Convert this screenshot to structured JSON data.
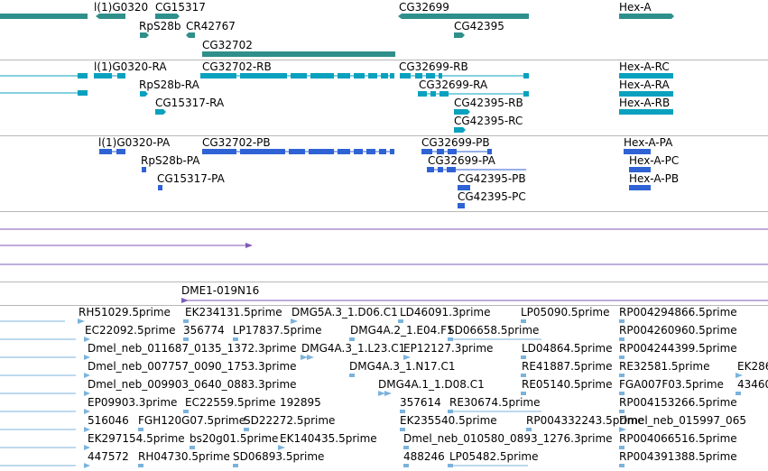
{
  "colors": {
    "gene": "#2f8f8a",
    "transcript": "#0aa1bf",
    "protein": "#2f62d4",
    "clone": "#7d5bb8",
    "est": "#7bb3dc",
    "separator": "#b8b8b8"
  },
  "genes_track": {
    "features": [
      {
        "label": "l(1)G0320",
        "name": "gene-l1G0320"
      },
      {
        "label": "CG15317",
        "name": "gene-CG15317"
      },
      {
        "label": "RpS28b",
        "name": "gene-RpS28b"
      },
      {
        "label": "CR42767",
        "name": "gene-CR42767"
      },
      {
        "label": "CG32702",
        "name": "gene-CG32702"
      },
      {
        "label": "CG32699",
        "name": "gene-CG32699"
      },
      {
        "label": "CG42395",
        "name": "gene-CG42395"
      },
      {
        "label": "Hex-A",
        "name": "gene-HexA"
      }
    ]
  },
  "transcripts_track": {
    "features": [
      {
        "label": "l(1)G0320-RA"
      },
      {
        "label": "CG32702-RB"
      },
      {
        "label": "CG32699-RB"
      },
      {
        "label": "Hex-A-RC"
      },
      {
        "label": "RpS28b-RA"
      },
      {
        "label": "CG32699-RA"
      },
      {
        "label": "Hex-A-RA"
      },
      {
        "label": "CG15317-RA"
      },
      {
        "label": "CG42395-RB"
      },
      {
        "label": "Hex-A-RB"
      },
      {
        "label": "CG42395-RC"
      }
    ]
  },
  "proteins_track": {
    "features": [
      {
        "label": "l(1)G0320-PA"
      },
      {
        "label": "CG32702-PB"
      },
      {
        "label": "CG32699-PB"
      },
      {
        "label": "Hex-A-PA"
      },
      {
        "label": "RpS28b-PA"
      },
      {
        "label": "CG32699-PA"
      },
      {
        "label": "Hex-A-PC"
      },
      {
        "label": "CG15317-PA"
      },
      {
        "label": "CG42395-PB"
      },
      {
        "label": "Hex-A-PB"
      },
      {
        "label": "CG42395-PC"
      }
    ]
  },
  "clone_track": {
    "label": "DME1-019N16"
  },
  "est_track": {
    "rows": [
      [
        "RH51029.5prime",
        "EK234131.5prime",
        "DMG5A.3_1.D06.C1",
        "LD46091.3prime",
        "LP05090.5prime",
        "RP004294866.5prime"
      ],
      [
        "EC22092.5prime",
        "356774",
        "LP17837.5prime",
        "DMG4A.2_1.E04.F1",
        "SD06658.5prime",
        "RP004260960.5prime"
      ],
      [
        "Dmel_neb_011687_0135_1372.3prime",
        "DMG4A.3_1.L23.C1",
        "EP12127.3prime",
        "LD04864.5prime",
        "RP004244399.5prime"
      ],
      [
        "Dmel_neb_007757_0090_1753.3prime",
        "DMG4A.3_1.N17.C1",
        "RE41887.5prime",
        "RE32581.5prime",
        "EK286"
      ],
      [
        "Dmel_neb_009903_0640_0883.3prime",
        "DMG4A.1_1.D08.C1",
        "RE05140.5prime",
        "FGA007F03.5prime",
        "43460"
      ],
      [
        "EP09903.3prime",
        "EC22559.5prime",
        "192895",
        "357614",
        "RE30674.5prime",
        "RP004153266.5prime"
      ],
      [
        "516046",
        "FGH120G07.5prime",
        "SD22272.5prime",
        "EK235540.5prime",
        "RP004332243.5prime",
        "Dmel_neb_015997_065"
      ],
      [
        "EK297154.5prime",
        "bs20g01.5prime",
        "EK140435.5prime",
        "Dmel_neb_010580_0893_1276.3prime",
        "RP004066516.5prime"
      ],
      [
        "447572",
        "RH04730.5prime",
        "SD06893.5prime",
        "488246",
        "LP05482.5prime",
        "RP004391388.5prime"
      ]
    ]
  }
}
